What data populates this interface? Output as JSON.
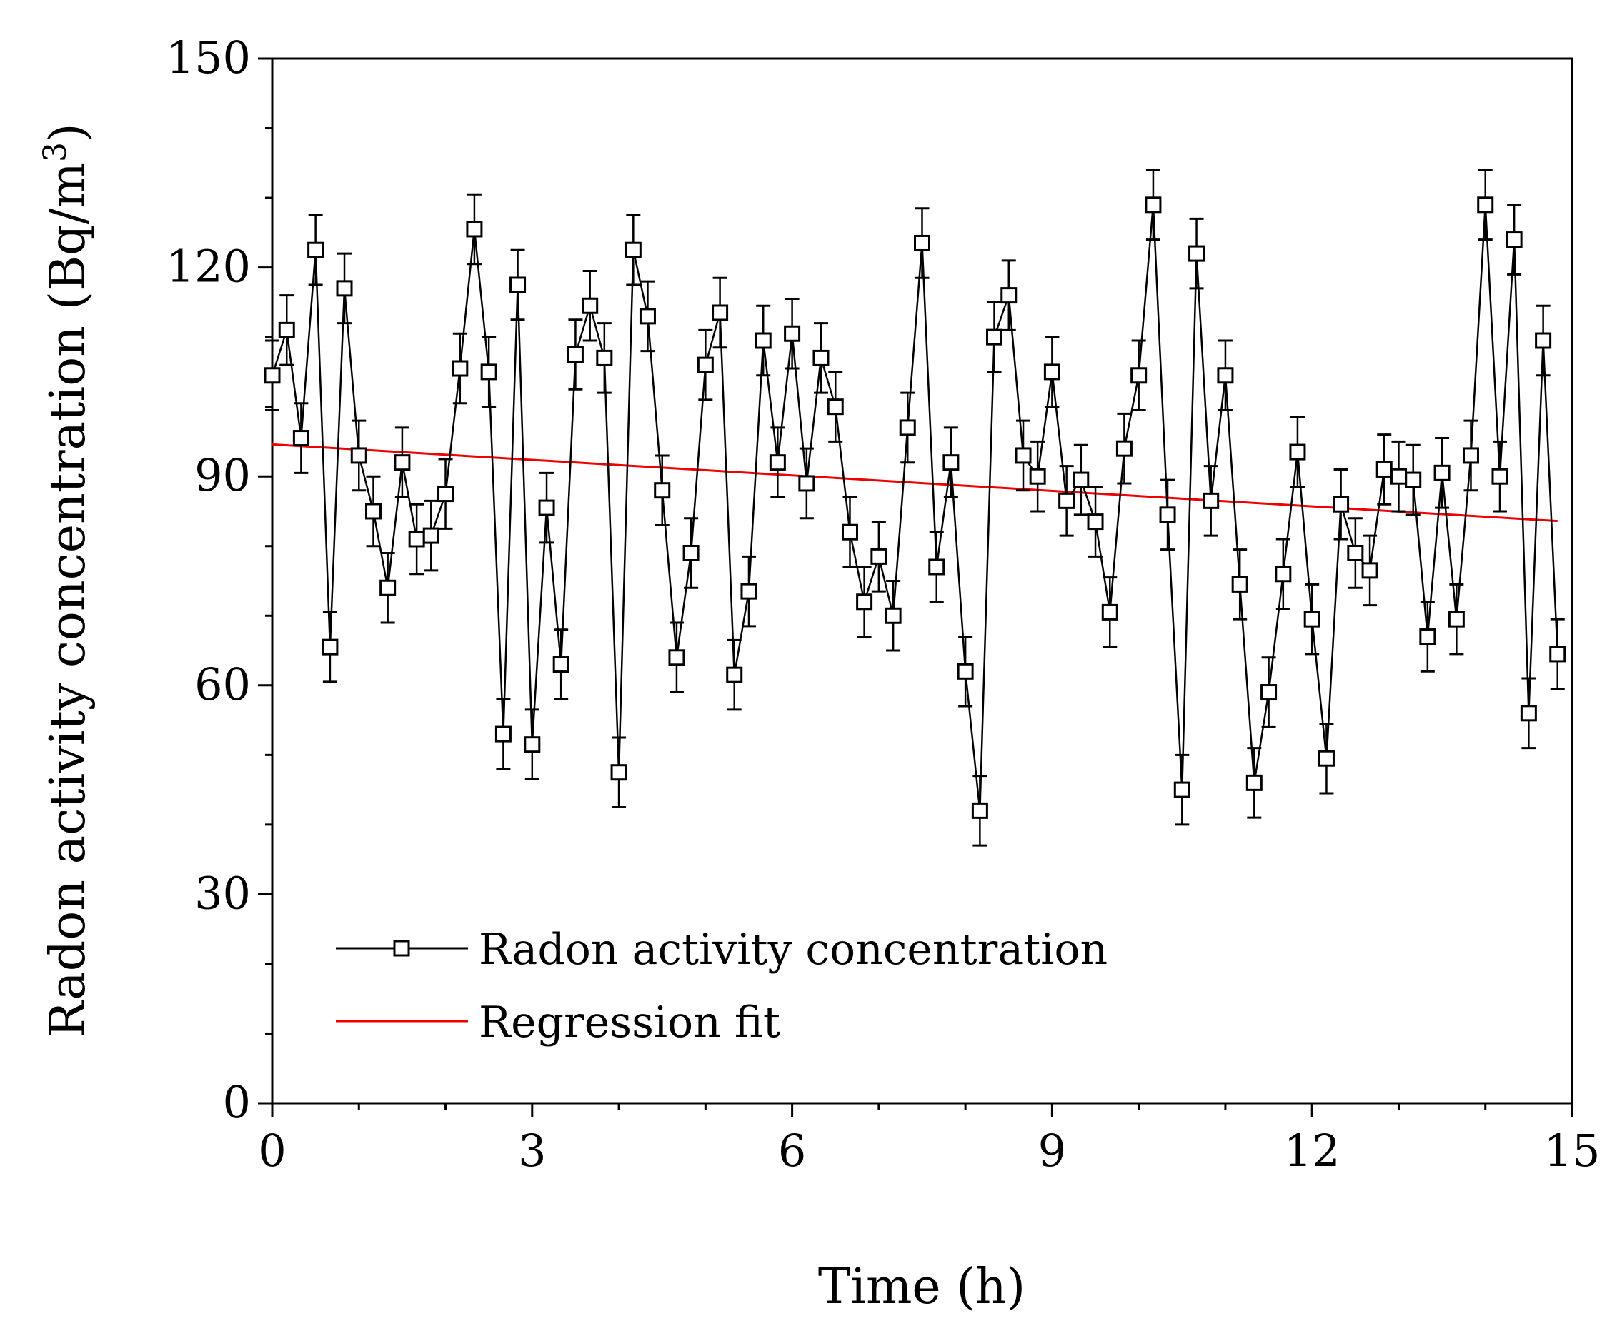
{
  "chart_data": {
    "type": "line",
    "title": "",
    "xlabel": "Time (h)",
    "ylabel": "Radon activity concentration (Bq/m",
    "ylabel_superscript": "3",
    "ylabel_suffix": ")",
    "xlim": [
      0,
      15
    ],
    "ylim": [
      0,
      150
    ],
    "x_ticks": [
      0,
      3,
      6,
      9,
      12,
      15
    ],
    "x_tick_labels": [
      "0",
      "3",
      "6",
      "9",
      "12",
      "15"
    ],
    "y_ticks": [
      0,
      30,
      60,
      90,
      120,
      150
    ],
    "y_tick_labels": [
      "0",
      "30",
      "60",
      "90",
      "120",
      "150"
    ],
    "x_minor_step": 1,
    "y_minor_step": 10,
    "grid": false,
    "legend_position": "bottom-left",
    "series": [
      {
        "name": "Radon activity concentration",
        "color": "#000000",
        "marker": "open-square",
        "error_bar": 5,
        "x": [
          0,
          0.167,
          0.333,
          0.5,
          0.667,
          0.833,
          1.0,
          1.167,
          1.333,
          1.5,
          1.667,
          1.833,
          2.0,
          2.167,
          2.333,
          2.5,
          2.667,
          2.833,
          3.0,
          3.167,
          3.333,
          3.5,
          3.667,
          3.833,
          4.0,
          4.167,
          4.333,
          4.5,
          4.667,
          4.833,
          5.0,
          5.167,
          5.333,
          5.5,
          5.667,
          5.833,
          6.0,
          6.167,
          6.333,
          6.5,
          6.667,
          6.833,
          7.0,
          7.167,
          7.333,
          7.5,
          7.667,
          7.833,
          8.0,
          8.167,
          8.333,
          8.5,
          8.667,
          8.833,
          9.0,
          9.167,
          9.333,
          9.5,
          9.667,
          9.833,
          10.0,
          10.167,
          10.333,
          10.5,
          10.667,
          10.833,
          11.0,
          11.167,
          11.333,
          11.5,
          11.667,
          11.833,
          12.0,
          12.167,
          12.333,
          12.5,
          12.667,
          12.833,
          13.0,
          13.167,
          13.333,
          13.5,
          13.667,
          13.833,
          14.0,
          14.167,
          14.333,
          14.5,
          14.667,
          14.833
        ],
        "values": [
          104.5,
          111,
          95.5,
          122.5,
          65.5,
          117,
          93,
          85,
          74,
          92,
          81,
          81.5,
          87.5,
          105.5,
          125.5,
          105,
          53,
          117.5,
          51.5,
          85.5,
          63,
          107.5,
          114.5,
          107,
          47.5,
          122.5,
          113,
          88,
          64,
          79,
          106,
          113.5,
          61.5,
          73.5,
          109.5,
          92,
          110.5,
          89,
          107,
          100,
          82,
          72,
          78.5,
          70,
          97,
          123.5,
          77,
          92,
          62,
          42,
          110,
          116,
          93,
          90,
          105,
          86.5,
          89.5,
          83.5,
          70.5,
          94,
          104.5,
          129,
          84.5,
          45,
          122,
          86.5,
          104.5,
          74.5,
          46,
          59,
          76,
          93.5,
          69.5,
          49.5,
          86,
          79,
          76.5,
          91,
          90,
          89.5,
          67,
          90.5,
          69.5,
          93,
          129,
          90,
          124,
          56,
          109.5,
          64.5
        ]
      },
      {
        "name": "Regression fit",
        "color": "#ee0000",
        "marker": "none",
        "x": [
          0,
          14.833
        ],
        "values": [
          94.6,
          83.6
        ]
      }
    ]
  }
}
